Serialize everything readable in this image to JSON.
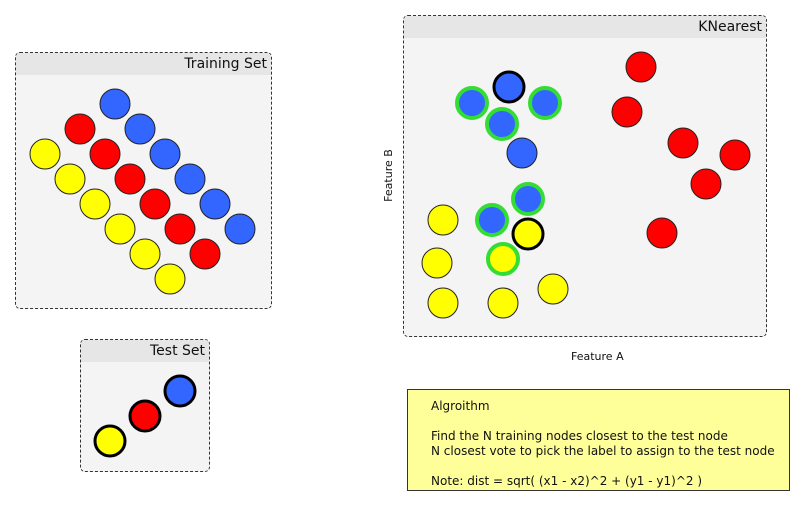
{
  "panels": {
    "training": {
      "title": "Training Set"
    },
    "test": {
      "title": "Test Set"
    },
    "knearest": {
      "title": "KNearest"
    }
  },
  "axes": {
    "x_label": "Feature A",
    "y_label": "Feature B"
  },
  "algorithm": {
    "title": "Algroithm",
    "line1": "Find the N training nodes closest to the test node",
    "line2": "N closest vote to pick the label to assign to the test node",
    "note": "Note: dist = sqrt( (x1 - x2)^2 + (y1 - y1)^2 )"
  },
  "colors": {
    "blue": "#3366ff",
    "red": "#ff0000",
    "yellow": "#ffff00",
    "highlight": "#33dd33"
  }
}
